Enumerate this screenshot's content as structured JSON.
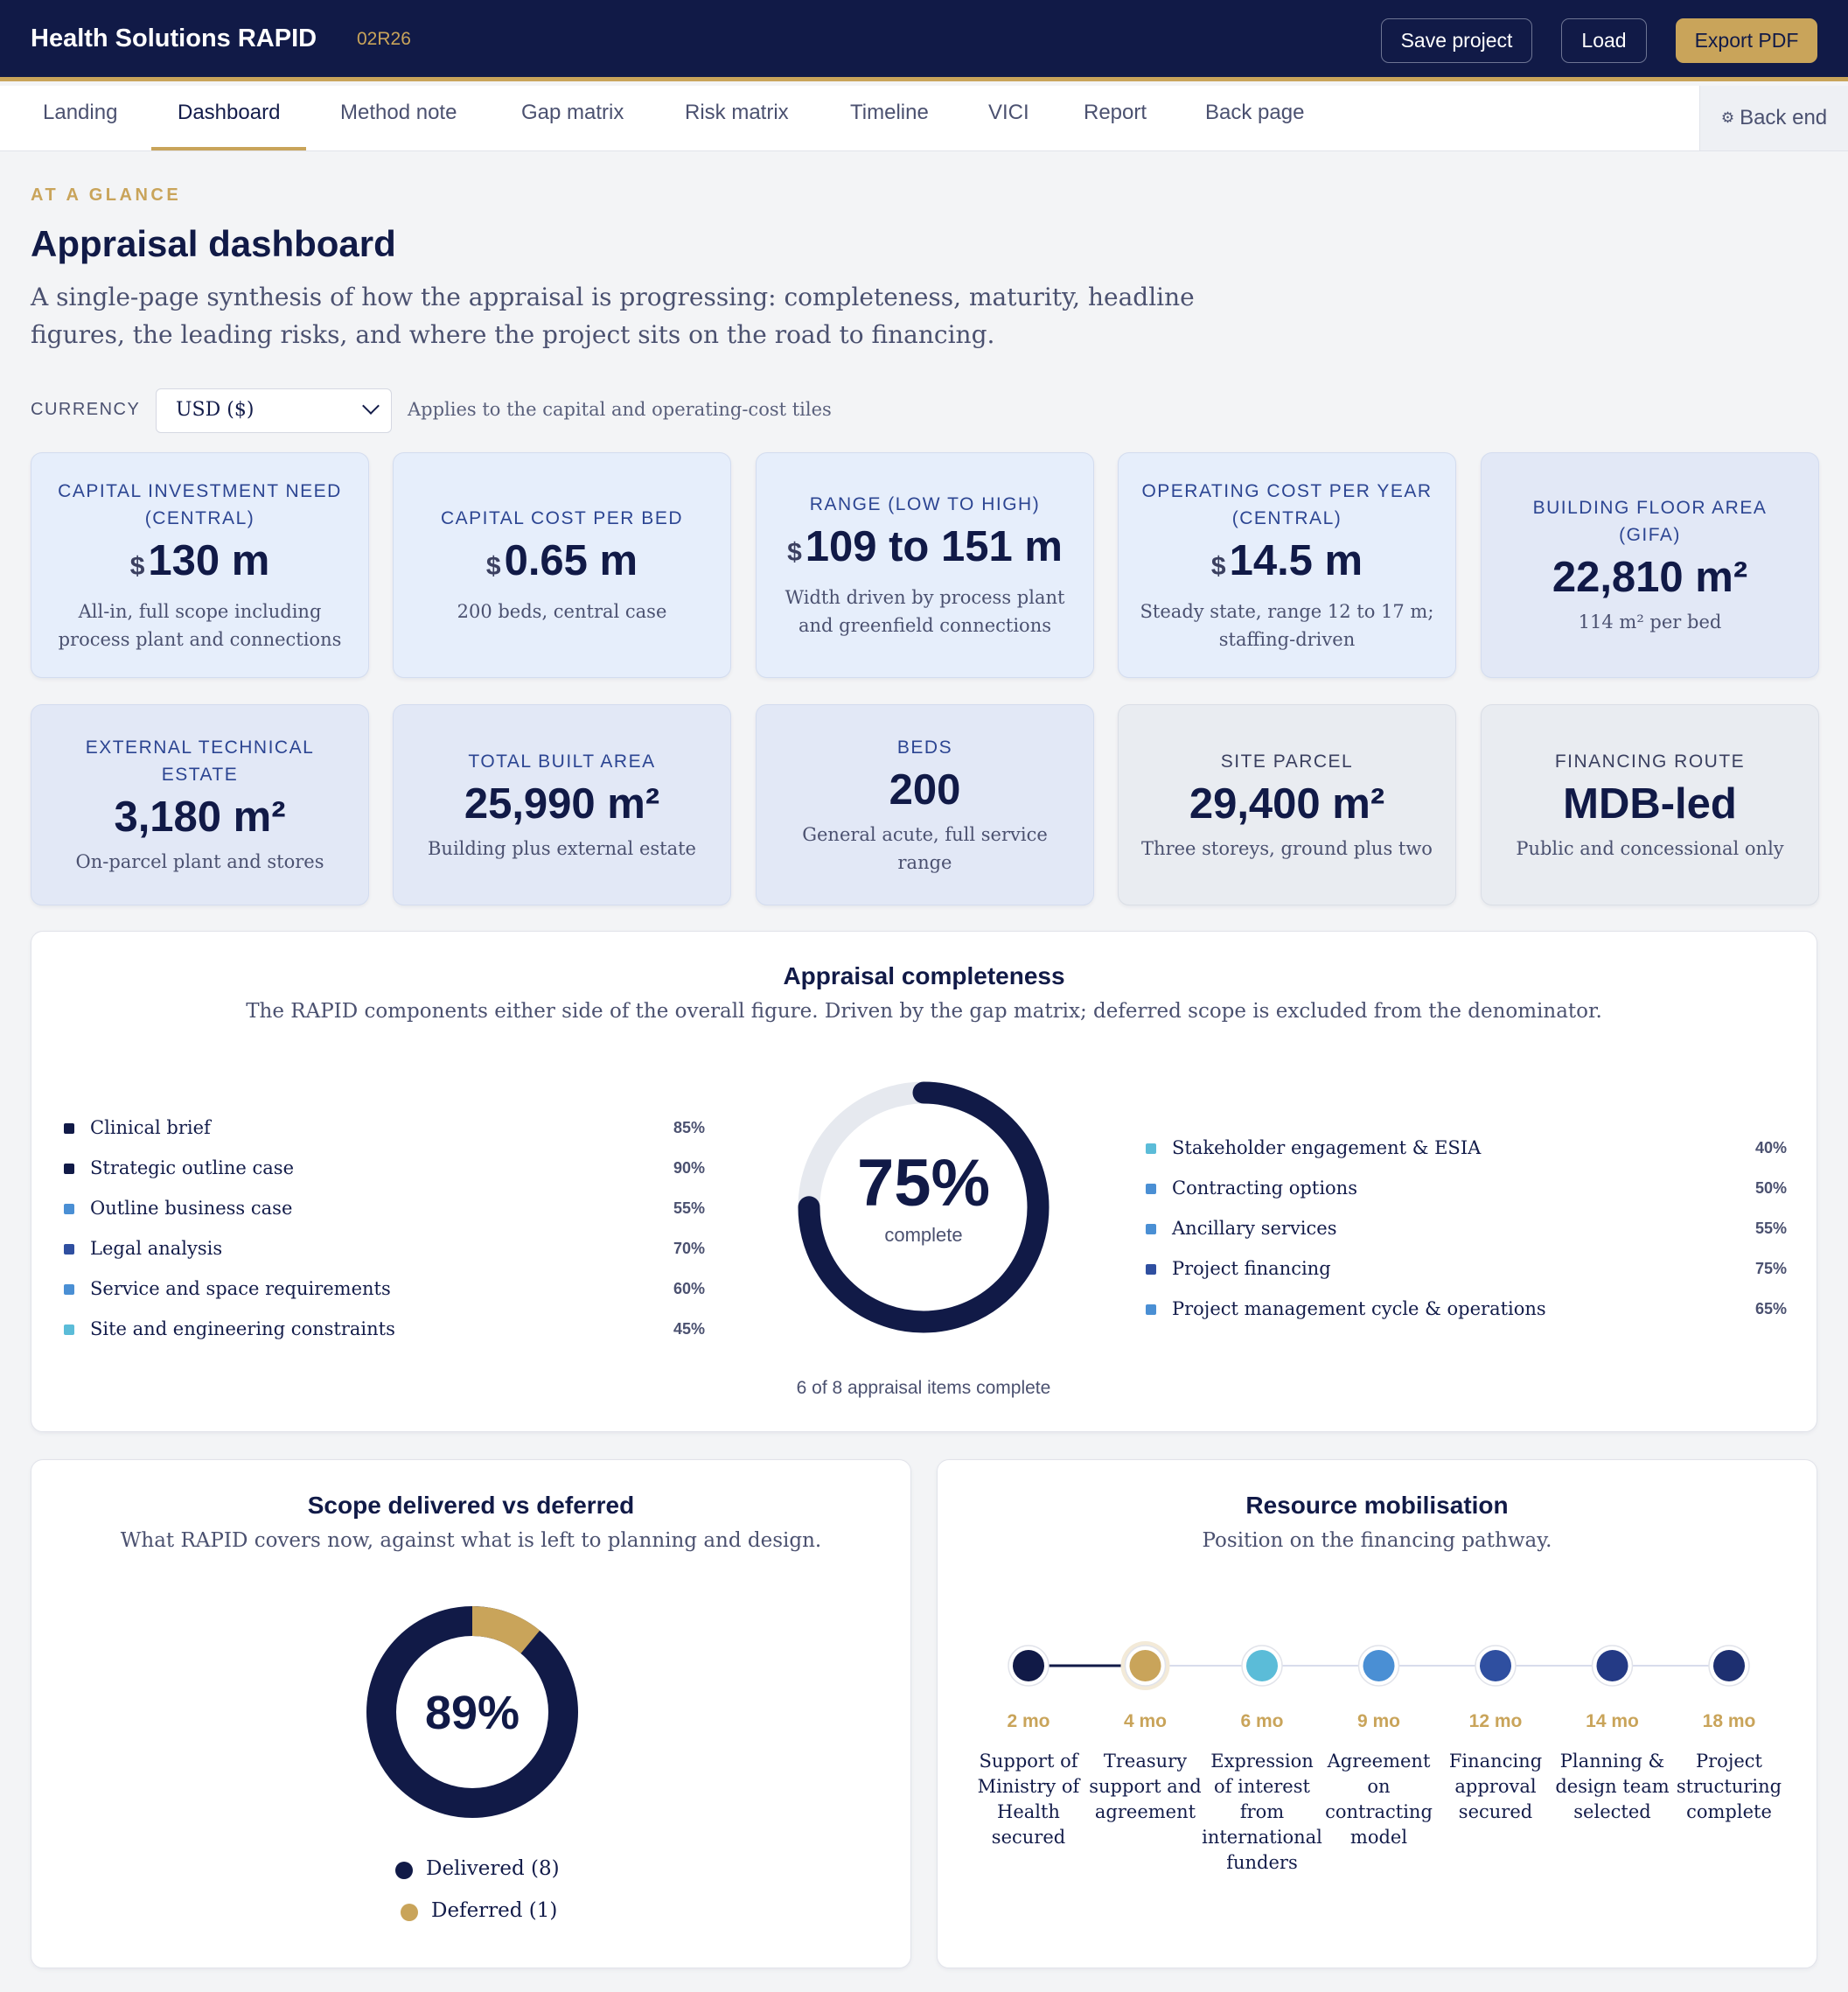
{
  "header": {
    "app_title": "Health Solutions RAPID",
    "project_code": "02R26",
    "buttons": {
      "save": "Save project",
      "load": "Load",
      "export": "Export PDF"
    }
  },
  "tabs": [
    {
      "label": "Landing"
    },
    {
      "label": "Dashboard",
      "active": true
    },
    {
      "label": "Method note"
    },
    {
      "label": "Gap matrix"
    },
    {
      "label": "Risk matrix"
    },
    {
      "label": "Timeline"
    },
    {
      "label": "VICI"
    },
    {
      "label": "Report"
    },
    {
      "label": "Back page"
    }
  ],
  "backend_tab": {
    "icon": "gear-icon",
    "label": "Back end"
  },
  "intro": {
    "eyebrow": "AT A GLANCE",
    "title": "Appraisal dashboard",
    "lead": "A single-page synthesis of how the appraisal is progressing: completeness, maturity, headline figures, the leading risks, and where the project sits on the road to financing."
  },
  "currency": {
    "label": "CURRENCY",
    "selected": "USD ($)",
    "hint": "Applies to the capital and operating-cost tiles"
  },
  "tiles": [
    {
      "label": "CAPITAL INVESTMENT NEED (CENTRAL)",
      "currency": "$",
      "value": "130 m",
      "sub": "All-in, full scope including process plant and connections"
    },
    {
      "label": "CAPITAL COST PER BED",
      "currency": "$",
      "value": "0.65 m",
      "sub": "200 beds, central case"
    },
    {
      "label": "RANGE (LOW TO HIGH)",
      "currency": "$",
      "value": "109 to 151 m",
      "sub": "Width driven by process plant and greenfield connections"
    },
    {
      "label": "OPERATING COST PER YEAR (CENTRAL)",
      "currency": "$",
      "value": "14.5 m",
      "sub": "Steady state, range 12 to 17 m; staffing-driven"
    },
    {
      "label": "BUILDING FLOOR AREA (GIFA)",
      "currency": "",
      "value": "22,810 m²",
      "sub": "114 m² per bed"
    },
    {
      "label": "EXTERNAL TECHNICAL ESTATE",
      "currency": "",
      "value": "3,180 m²",
      "sub": "On-parcel plant and stores"
    },
    {
      "label": "TOTAL BUILT AREA",
      "currency": "",
      "value": "25,990 m²",
      "sub": "Building plus external estate"
    },
    {
      "label": "BEDS",
      "currency": "",
      "value": "200",
      "sub": "General acute, full service range"
    },
    {
      "label": "SITE PARCEL",
      "currency": "",
      "value": "29,400 m²",
      "sub": "Three storeys, ground plus two"
    },
    {
      "label": "FINANCING ROUTE",
      "currency": "",
      "value": "MDB-led",
      "sub": "Public and concessional only"
    }
  ],
  "completeness": {
    "title": "Appraisal completeness",
    "subtitle": "The RAPID components either side of the overall figure. Driven by the gap matrix; deferred scope is excluded from the denominator.",
    "overall_pct": 75,
    "overall_value": "75%",
    "overall_caption": "complete",
    "footer": "6 of 8 appraisal items complete",
    "left_items": [
      {
        "name": "Clinical brief",
        "pct": "85%",
        "color": "#111a47"
      },
      {
        "name": "Strategic outline case",
        "pct": "90%",
        "color": "#111a47"
      },
      {
        "name": "Outline business case",
        "pct": "55%",
        "color": "#4a8fd4"
      },
      {
        "name": "Legal analysis",
        "pct": "70%",
        "color": "#2f4fa0"
      },
      {
        "name": "Service and space requirements",
        "pct": "60%",
        "color": "#4a8fd4"
      },
      {
        "name": "Site and engineering constraints",
        "pct": "45%",
        "color": "#5bbcd8"
      }
    ],
    "right_items": [
      {
        "name": "Stakeholder engagement & ESIA",
        "pct": "40%",
        "color": "#5bbcd8"
      },
      {
        "name": "Contracting options",
        "pct": "50%",
        "color": "#4a8fd4"
      },
      {
        "name": "Ancillary services",
        "pct": "55%",
        "color": "#4a8fd4"
      },
      {
        "name": "Project financing",
        "pct": "75%",
        "color": "#2f4fa0"
      },
      {
        "name": "Project management cycle & operations",
        "pct": "65%",
        "color": "#4a8fd4"
      }
    ]
  },
  "scope": {
    "title": "Scope delivered vs deferred",
    "subtitle": "What RAPID covers now, against what is left to planning and design.",
    "pct": 89,
    "value": "89%",
    "legend": [
      {
        "label": "Delivered (8)",
        "count": 8,
        "color": "#111a47"
      },
      {
        "label": "Deferred (1)",
        "count": 1,
        "color": "#c9a45a"
      }
    ]
  },
  "mobilisation": {
    "title": "Resource mobilisation",
    "subtitle": "Position on the financing pathway.",
    "current_index": 1,
    "steps": [
      {
        "months": "2 mo",
        "label": "Support of Ministry of Health secured",
        "color": "#111a47"
      },
      {
        "months": "4 mo",
        "label": "Treasury support and agreement",
        "color": "#c9a45a"
      },
      {
        "months": "6 mo",
        "label": "Expression of interest from international funders",
        "color": "#5bbcd8"
      },
      {
        "months": "9 mo",
        "label": "Agreement on contracting model",
        "color": "#4a8fd4"
      },
      {
        "months": "12 mo",
        "label": "Financing approval secured",
        "color": "#2f4fa0"
      },
      {
        "months": "14 mo",
        "label": "Planning & design team selected",
        "color": "#243a85"
      },
      {
        "months": "18 mo",
        "label": "Project structuring complete",
        "color": "#1d2f70"
      }
    ]
  }
}
